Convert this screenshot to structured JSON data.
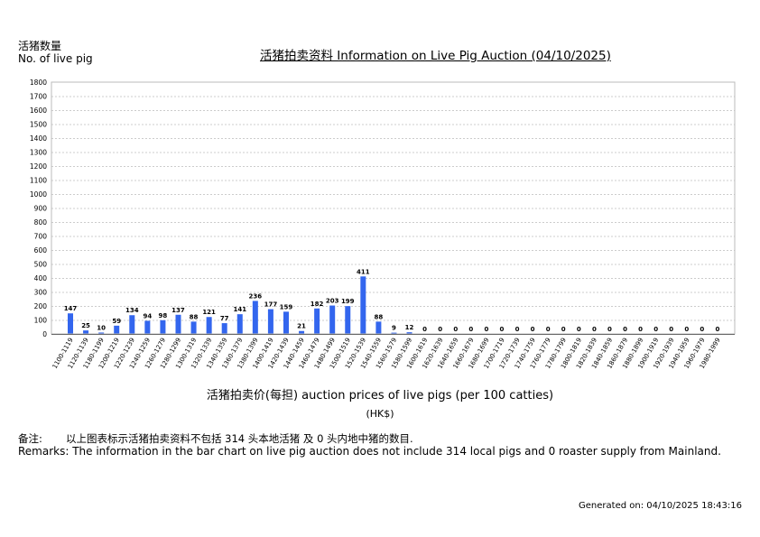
{
  "chart_data": {
    "type": "bar",
    "title": "活猪拍卖资料 Information on Live Pig Auction (04/10/2025)",
    "ylabel_zh": "活猪数量",
    "ylabel_en": "No. of live pig",
    "xlabel": "活猪拍卖价(每担) auction prices of live pigs (per 100 catties)",
    "xunit": "(HK$)",
    "ylim": [
      0,
      1800
    ],
    "yticks": [
      0,
      100,
      200,
      300,
      400,
      500,
      600,
      700,
      800,
      900,
      1000,
      1100,
      1200,
      1300,
      1400,
      1500,
      1600,
      1700,
      1800
    ],
    "grid": true,
    "bar_color": "#3366ee",
    "categories": [
      "1100-1119",
      "1120-1139",
      "1180-1199",
      "1200-1219",
      "1220-1239",
      "1240-1259",
      "1260-1279",
      "1280-1299",
      "1300-1319",
      "1320-1339",
      "1340-1359",
      "1360-1379",
      "1380-1399",
      "1400-1419",
      "1420-1439",
      "1440-1459",
      "1460-1479",
      "1480-1499",
      "1500-1519",
      "1520-1539",
      "1540-1559",
      "1560-1579",
      "1580-1599",
      "1600-1619",
      "1620-1639",
      "1640-1659",
      "1660-1679",
      "1680-1699",
      "1700-1719",
      "1720-1739",
      "1740-1759",
      "1760-1779",
      "1780-1799",
      "1800-1819",
      "1820-1839",
      "1840-1859",
      "1860-1879",
      "1880-1899",
      "1900-1919",
      "1920-1939",
      "1940-1959",
      "1960-1979",
      "1980-1999"
    ],
    "values": [
      147,
      25,
      10,
      59,
      134,
      94,
      98,
      137,
      88,
      121,
      77,
      141,
      236,
      177,
      159,
      21,
      182,
      203,
      199,
      411,
      88,
      9,
      12,
      0,
      0,
      0,
      0,
      0,
      0,
      0,
      0,
      0,
      0,
      0,
      0,
      0,
      0,
      0,
      0,
      0,
      0,
      0,
      0
    ]
  },
  "remarks": {
    "zh_label": "备注:",
    "zh_text": "以上图表标示活猪拍卖资料不包括 314 头本地活猪 及 0 头内地中猪的数目.",
    "en_text": "Remarks: The information in the bar chart on live pig auction does not include 314 local pigs and 0 roaster supply from Mainland."
  },
  "generated": "Generated on: 04/10/2025 18:43:16"
}
